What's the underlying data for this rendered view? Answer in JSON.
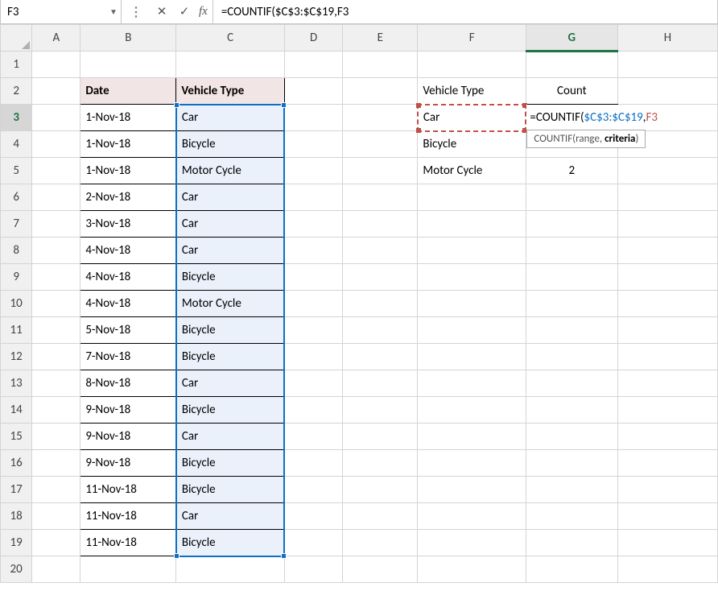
{
  "formula_bar": {
    "name_box": "F3",
    "cancel_glyph": "✕",
    "enter_glyph": "✓",
    "fx_label": "fx",
    "formula_text": "=COUNTIF($C$3:$C$19,F3"
  },
  "columns": [
    "A",
    "B",
    "C",
    "D",
    "E",
    "F",
    "G",
    "H"
  ],
  "active_col": "G",
  "active_row": 3,
  "row_count": 20,
  "table": {
    "header": {
      "B": "Date",
      "C": "Vehicle Type"
    },
    "rows": [
      {
        "date": "1-Nov-18",
        "type": "Car"
      },
      {
        "date": "1-Nov-18",
        "type": "Bicycle"
      },
      {
        "date": "1-Nov-18",
        "type": "Motor Cycle"
      },
      {
        "date": "2-Nov-18",
        "type": "Car"
      },
      {
        "date": "3-Nov-18",
        "type": "Car"
      },
      {
        "date": "4-Nov-18",
        "type": "Car"
      },
      {
        "date": "4-Nov-18",
        "type": "Bicycle"
      },
      {
        "date": "4-Nov-18",
        "type": "Motor Cycle"
      },
      {
        "date": "5-Nov-18",
        "type": "Bicycle"
      },
      {
        "date": "7-Nov-18",
        "type": "Bicycle"
      },
      {
        "date": "8-Nov-18",
        "type": "Car"
      },
      {
        "date": "9-Nov-18",
        "type": "Bicycle"
      },
      {
        "date": "9-Nov-18",
        "type": "Car"
      },
      {
        "date": "9-Nov-18",
        "type": "Bicycle"
      },
      {
        "date": "11-Nov-18",
        "type": "Bicycle"
      },
      {
        "date": "11-Nov-18",
        "type": "Car"
      },
      {
        "date": "11-Nov-18",
        "type": "Bicycle"
      }
    ]
  },
  "summary": {
    "header": {
      "F": "Vehicle Type",
      "G": "Count"
    },
    "rows": [
      {
        "type": "Car",
        "count": ""
      },
      {
        "type": "Bicycle",
        "count": ""
      },
      {
        "type": "Motor Cycle",
        "count": "2"
      }
    ]
  },
  "editing": {
    "prefix": "=COUNTIF(",
    "range": "$C$3:$C$19",
    "comma": ",",
    "ref": "F3",
    "tooltip_fn": "COUNTIF(",
    "tooltip_arg1": "range",
    "tooltip_sep": ", ",
    "tooltip_arg2": "criteria",
    "tooltip_close": ")"
  },
  "colors": {
    "grid_line": "#d4d4d4",
    "hdr_bg": "#f0f0f0",
    "accent": "#217346",
    "sel_fill": "#eaf1fb",
    "range_border": "#0f6fc6",
    "ref_border": "#c05046",
    "table_hdr_bg": "#f2e5e5"
  }
}
